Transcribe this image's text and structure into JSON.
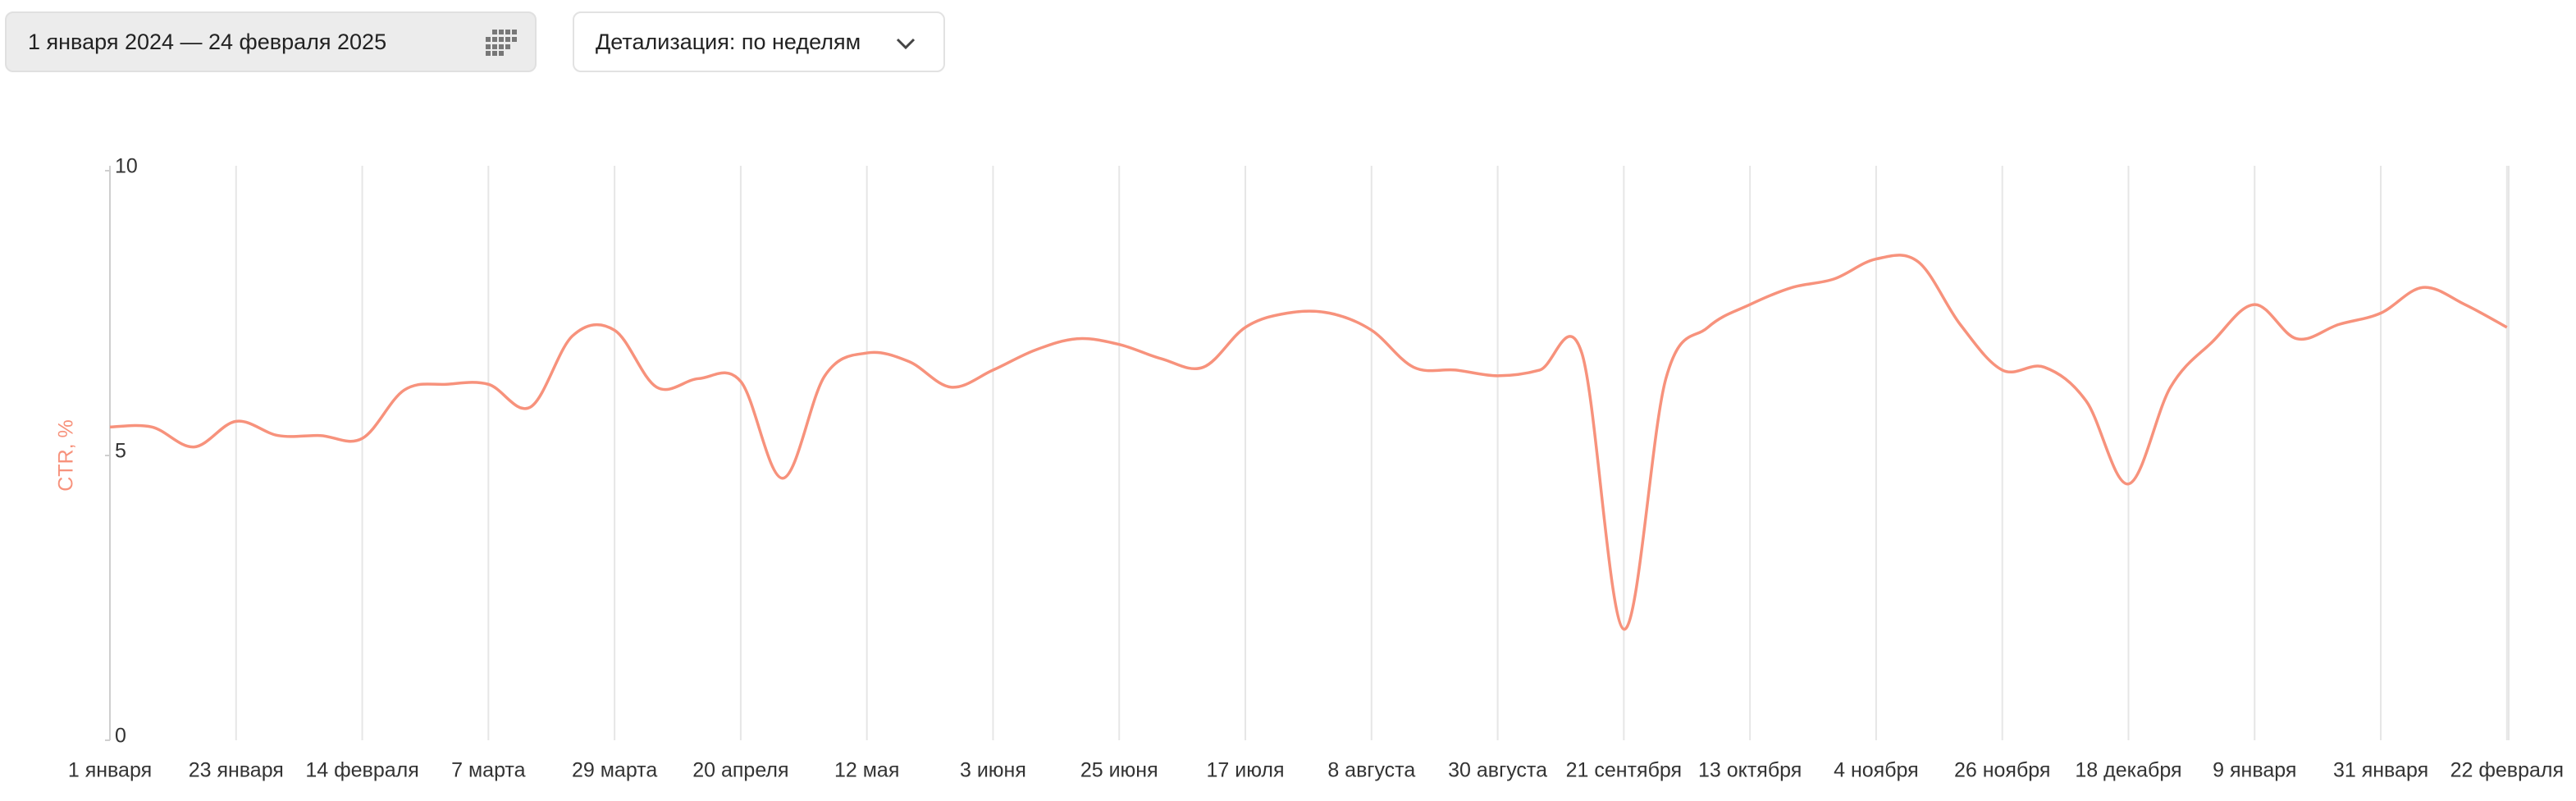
{
  "controls": {
    "date_range": "1 января 2024 — 24 февраля 2025",
    "detail": "Детализация: по неделям"
  },
  "chart_data": {
    "type": "line",
    "y_label": "CTR, %",
    "color": "#f7927c",
    "categories": [
      "1 января",
      null,
      null,
      "23 января",
      null,
      null,
      "14 февраля",
      null,
      null,
      "7 марта",
      null,
      null,
      "29 марта",
      null,
      null,
      "20 апреля",
      null,
      null,
      "12 мая",
      null,
      null,
      "3 июня",
      null,
      null,
      "25 июня",
      null,
      null,
      "17 июля",
      null,
      null,
      "8 августа",
      null,
      null,
      "30 августа",
      null,
      null,
      "21 сентября",
      null,
      null,
      "13 октября",
      null,
      null,
      "4 ноября",
      null,
      null,
      "26 ноября",
      null,
      null,
      "18 декабря",
      null,
      null,
      "9 января",
      null,
      null,
      "31 января",
      null,
      null,
      "22 февраля"
    ],
    "values": [
      5.5,
      5.5,
      5.15,
      5.6,
      5.35,
      5.35,
      5.3,
      6.15,
      6.25,
      6.25,
      5.85,
      7.1,
      7.2,
      6.2,
      6.35,
      6.3,
      4.6,
      6.4,
      6.8,
      6.65,
      6.2,
      6.5,
      6.85,
      7.05,
      6.95,
      6.7,
      6.55,
      7.25,
      7.5,
      7.5,
      7.2,
      6.55,
      6.5,
      6.4,
      6.5,
      6.8,
      1.95,
      6.35,
      7.25,
      7.65,
      7.95,
      8.1,
      8.45,
      8.4,
      7.3,
      6.5,
      6.55,
      5.95,
      4.5,
      6.2,
      7.0,
      7.65,
      7.05,
      7.3,
      7.5,
      7.95,
      7.65,
      7.25
    ],
    "ylim": [
      0,
      10
    ],
    "yticks": [
      0,
      5,
      10
    ],
    "grid": true
  }
}
